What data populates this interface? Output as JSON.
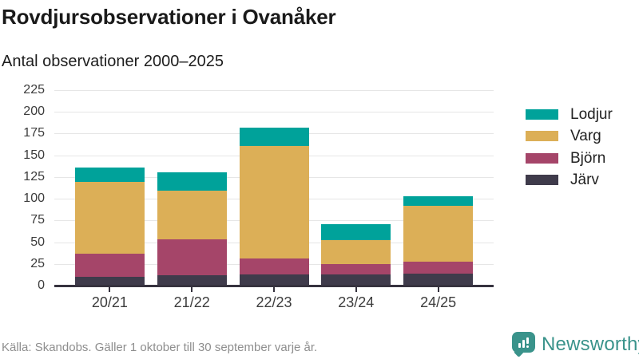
{
  "header": {
    "title": "Rovdjursobservationer i Ovanåker",
    "subtitle": "Antal observationer 2000–2025"
  },
  "chart_data": {
    "type": "bar",
    "stacked": true,
    "title": "Rovdjursobservationer i Ovanåker",
    "subtitle": "Antal observationer 2000–2025",
    "categories": [
      "20/21",
      "21/22",
      "22/23",
      "23/24",
      "24/25"
    ],
    "series": [
      {
        "name": "Järv",
        "color": "#3f3b4b",
        "values": [
          10,
          12,
          13,
          13,
          14
        ]
      },
      {
        "name": "Björn",
        "color": "#a54569",
        "values": [
          27,
          41,
          18,
          12,
          14
        ]
      },
      {
        "name": "Varg",
        "color": "#dcaf57",
        "values": [
          82,
          56,
          130,
          27,
          64
        ]
      },
      {
        "name": "Lodjur",
        "color": "#00a29a",
        "values": [
          17,
          21,
          21,
          19,
          11
        ]
      }
    ],
    "totals": [
      136,
      130,
      182,
      71,
      103
    ],
    "ylim": [
      0,
      225
    ],
    "yticks": [
      0,
      25,
      50,
      75,
      100,
      125,
      150,
      175,
      200,
      225
    ],
    "grid": true,
    "legend_position": "right",
    "legend_order": [
      "Lodjur",
      "Varg",
      "Björn",
      "Järv"
    ]
  },
  "footer": {
    "source": "Källa: Skandobs. Gäller 1 oktober till 30 september varje år.",
    "brand": "Newsworthy"
  },
  "colors": {
    "lodjur": "#00a29a",
    "varg": "#dcaf57",
    "bjorn": "#a54569",
    "jarv": "#3f3b4b",
    "axis": "#37333f",
    "grid": "#e6e6e6",
    "brand_teal": "#3a938b",
    "text_dark": "#1a1a1a",
    "text_muted": "#8e8e8e"
  }
}
